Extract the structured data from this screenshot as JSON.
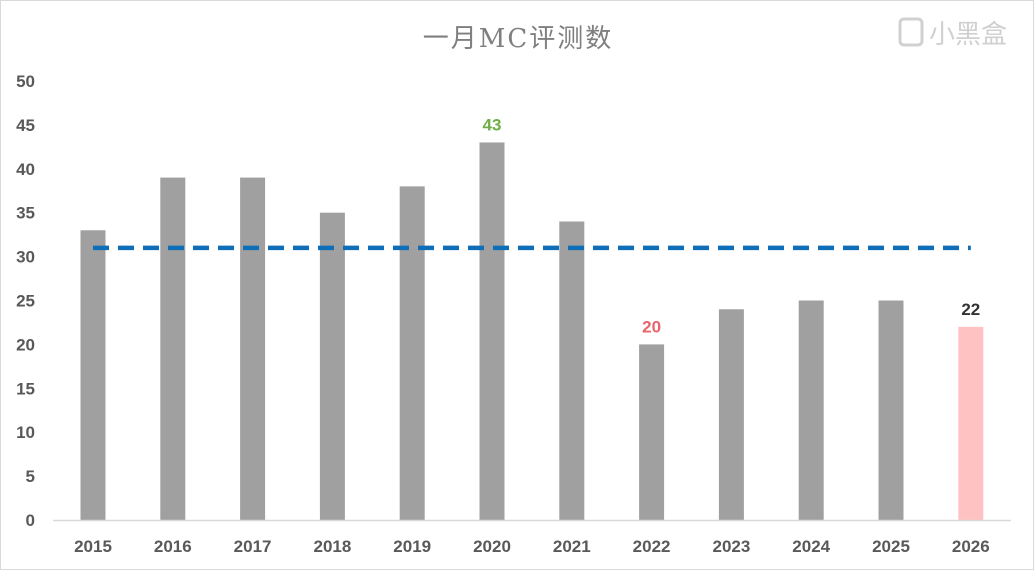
{
  "chart_data": {
    "type": "bar",
    "title": "一月MC评测数",
    "xlabel": "",
    "ylabel": "",
    "ylim": [
      0,
      50
    ],
    "yticks": [
      0,
      5,
      10,
      15,
      20,
      25,
      30,
      35,
      40,
      45,
      50
    ],
    "grid": false,
    "categories": [
      "2015",
      "2016",
      "2017",
      "2018",
      "2019",
      "2020",
      "2021",
      "2022",
      "2023",
      "2024",
      "2025",
      "2026"
    ],
    "values": [
      33,
      39,
      39,
      35,
      38,
      43,
      34,
      20,
      24,
      25,
      25,
      22
    ],
    "bar_color": "#a0a0a0",
    "highlight": {
      "category": "2026",
      "color": "#ffc2c2"
    },
    "average_line": {
      "value": 31,
      "style": "dashed",
      "color": "#0e6fb8"
    },
    "data_labels": [
      {
        "category": "2020",
        "text": "43",
        "color": "#70ad47"
      },
      {
        "category": "2022",
        "text": "20",
        "color": "#e8636a"
      },
      {
        "category": "2026",
        "text": "22",
        "color": "#333333"
      }
    ]
  },
  "watermark": "小黑盒"
}
